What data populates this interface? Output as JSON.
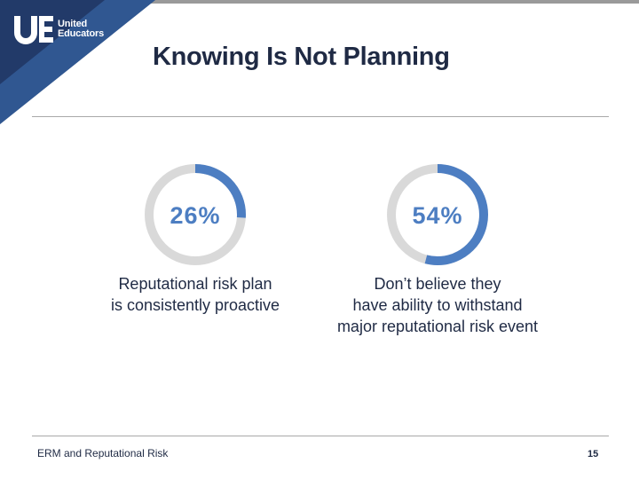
{
  "logo": {
    "line1": "United",
    "line2": "Educators",
    "mark": "UE"
  },
  "slide": {
    "title": "Knowing Is Not Planning"
  },
  "stats": [
    {
      "percent_label": "26%",
      "value": 26,
      "caption_lines": [
        "Reputational risk plan",
        "is consistently proactive"
      ]
    },
    {
      "percent_label": "54%",
      "value": 54,
      "caption_lines": [
        "Don’t believe they",
        "have ability to withstand",
        "major reputational risk event"
      ]
    }
  ],
  "footer": {
    "left": "ERM and Reputational Risk",
    "page_number": "15"
  },
  "colors": {
    "accent": "#4d7ec2",
    "track": "#d9d9d9",
    "navy": "#1f2a44",
    "corner_dark": "#223a69",
    "corner_mid": "#3d6fb3"
  }
}
